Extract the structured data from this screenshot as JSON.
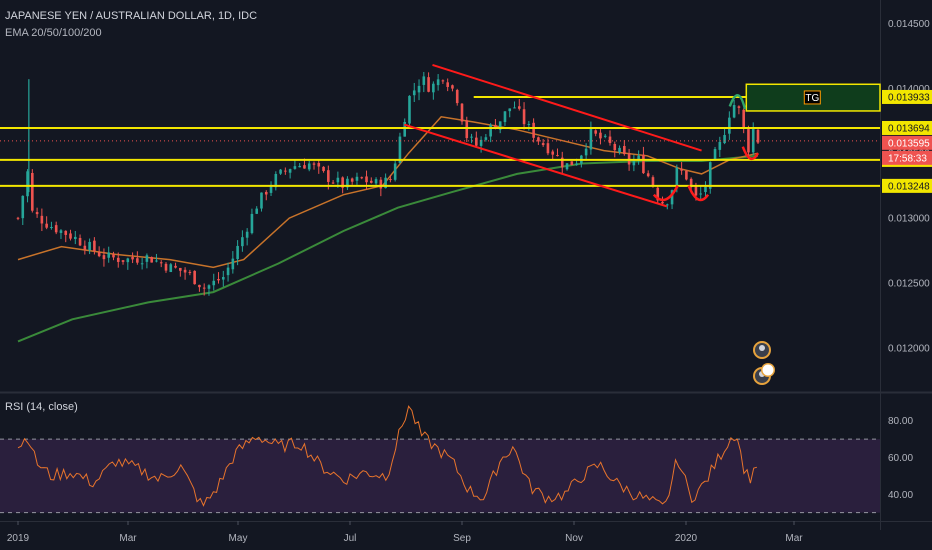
{
  "header": {
    "symbol": "JAPANESE YEN / AUSTRALIAN DOLLAR, 1D, IDC",
    "indicator": "EMA 20/50/100/200"
  },
  "rsi_label": "RSI (14, close)",
  "colors": {
    "background": "#131722",
    "up": "#26a69a",
    "down": "#ef5350",
    "level": "#f2e600",
    "channel": "#ff1a1a",
    "ema_fast": "#c8732a",
    "ema_slow": "#3a8a3a",
    "rsi": "#e8742c",
    "rsi_band": "#2a1f3d",
    "target_box": "#0f3d1c"
  },
  "chart_data": [
    {
      "type": "candlestick",
      "title": "JAPANESE YEN / AUSTRALIAN DOLLAR, 1D, IDC",
      "x_ticks": [
        "2019",
        "Mar",
        "May",
        "Jul",
        "Sep",
        "Nov",
        "2020",
        "Mar"
      ],
      "y_ticks": [
        "0.014500",
        "0.014000",
        "0.013500",
        "0.013000",
        "0.012500",
        "0.012000"
      ],
      "y_tick_values": [
        0.0145,
        0.014,
        0.0135,
        0.013,
        0.0125,
        0.012
      ],
      "ylim": [
        0.01166,
        0.01468
      ],
      "price_levels": [
        {
          "label": "0.013933",
          "value": 0.013933
        },
        {
          "label": "0.013694",
          "value": 0.013694
        },
        {
          "label": "0.013448",
          "value": 0.013448
        },
        {
          "label": "0.013248",
          "value": 0.013248
        }
      ],
      "current_price": {
        "label": "0.013595",
        "value": 0.013595
      },
      "countdown": "17:58:33",
      "target_label": "TG",
      "path_points": [
        {
          "t": 0,
          "p": 0.013
        },
        {
          "t": 5,
          "p": 0.0134
        },
        {
          "t": 6,
          "p": 0.01305
        },
        {
          "t": 14,
          "p": 0.01295
        },
        {
          "t": 26,
          "p": 0.01285
        },
        {
          "t": 40,
          "p": 0.0127
        },
        {
          "t": 50,
          "p": 0.01268
        },
        {
          "t": 60,
          "p": 0.0127
        },
        {
          "t": 70,
          "p": 0.01262
        },
        {
          "t": 78,
          "p": 0.01258
        },
        {
          "t": 86,
          "p": 0.01246
        },
        {
          "t": 95,
          "p": 0.01255
        },
        {
          "t": 102,
          "p": 0.0128
        },
        {
          "t": 110,
          "p": 0.0131
        },
        {
          "t": 118,
          "p": 0.0133
        },
        {
          "t": 126,
          "p": 0.0134
        },
        {
          "t": 134,
          "p": 0.01342
        },
        {
          "t": 142,
          "p": 0.01332
        },
        {
          "t": 150,
          "p": 0.01325
        },
        {
          "t": 158,
          "p": 0.0133
        },
        {
          "t": 166,
          "p": 0.01326
        },
        {
          "t": 172,
          "p": 0.0133
        },
        {
          "t": 176,
          "p": 0.01362
        },
        {
          "t": 180,
          "p": 0.01392
        },
        {
          "t": 186,
          "p": 0.01408
        },
        {
          "t": 190,
          "p": 0.014
        },
        {
          "t": 196,
          "p": 0.0141
        },
        {
          "t": 202,
          "p": 0.01395
        },
        {
          "t": 207,
          "p": 0.01362
        },
        {
          "t": 212,
          "p": 0.01355
        },
        {
          "t": 216,
          "p": 0.01367
        },
        {
          "t": 222,
          "p": 0.01375
        },
        {
          "t": 228,
          "p": 0.01388
        },
        {
          "t": 234,
          "p": 0.01372
        },
        {
          "t": 240,
          "p": 0.0136
        },
        {
          "t": 246,
          "p": 0.01352
        },
        {
          "t": 252,
          "p": 0.0134
        },
        {
          "t": 258,
          "p": 0.01345
        },
        {
          "t": 264,
          "p": 0.01365
        },
        {
          "t": 270,
          "p": 0.0136
        },
        {
          "t": 276,
          "p": 0.01352
        },
        {
          "t": 282,
          "p": 0.01342
        },
        {
          "t": 286,
          "p": 0.01345
        },
        {
          "t": 292,
          "p": 0.01328
        },
        {
          "t": 296,
          "p": 0.01312
        },
        {
          "t": 300,
          "p": 0.01315
        },
        {
          "t": 304,
          "p": 0.01338
        },
        {
          "t": 308,
          "p": 0.01332
        },
        {
          "t": 312,
          "p": 0.01315
        },
        {
          "t": 316,
          "p": 0.0132
        },
        {
          "t": 320,
          "p": 0.01345
        },
        {
          "t": 324,
          "p": 0.01358
        },
        {
          "t": 328,
          "p": 0.01382
        },
        {
          "t": 331,
          "p": 0.0139
        },
        {
          "t": 334,
          "p": 0.01372
        },
        {
          "t": 336,
          "p": 0.0135
        },
        {
          "t": 339,
          "p": 0.0137
        },
        {
          "t": 341,
          "p": 0.0136
        }
      ],
      "ema_fast": [
        {
          "t": 0,
          "p": 0.01268
        },
        {
          "t": 20,
          "p": 0.01278
        },
        {
          "t": 45,
          "p": 0.01272
        },
        {
          "t": 70,
          "p": 0.01268
        },
        {
          "t": 90,
          "p": 0.01262
        },
        {
          "t": 104,
          "p": 0.01268
        },
        {
          "t": 125,
          "p": 0.013
        },
        {
          "t": 150,
          "p": 0.01318
        },
        {
          "t": 168,
          "p": 0.01325
        },
        {
          "t": 180,
          "p": 0.0135
        },
        {
          "t": 195,
          "p": 0.01378
        },
        {
          "t": 210,
          "p": 0.01374
        },
        {
          "t": 230,
          "p": 0.01368
        },
        {
          "t": 250,
          "p": 0.0136
        },
        {
          "t": 270,
          "p": 0.01352
        },
        {
          "t": 290,
          "p": 0.01348
        },
        {
          "t": 305,
          "p": 0.01338
        },
        {
          "t": 315,
          "p": 0.01334
        },
        {
          "t": 328,
          "p": 0.01345
        },
        {
          "t": 341,
          "p": 0.0135
        }
      ],
      "ema_slow": [
        {
          "t": 0,
          "p": 0.01205
        },
        {
          "t": 25,
          "p": 0.01222
        },
        {
          "t": 60,
          "p": 0.01235
        },
        {
          "t": 90,
          "p": 0.01243
        },
        {
          "t": 120,
          "p": 0.01265
        },
        {
          "t": 150,
          "p": 0.0129
        },
        {
          "t": 175,
          "p": 0.01308
        },
        {
          "t": 200,
          "p": 0.0132
        },
        {
          "t": 230,
          "p": 0.01334
        },
        {
          "t": 260,
          "p": 0.01342
        },
        {
          "t": 290,
          "p": 0.01344
        },
        {
          "t": 315,
          "p": 0.01344
        },
        {
          "t": 341,
          "p": 0.01348
        }
      ]
    },
    {
      "type": "line",
      "title": "RSI (14, close)",
      "y_ticks": [
        "80.00",
        "60.00",
        "40.00"
      ],
      "y_tick_values": [
        80,
        60,
        40
      ],
      "ylim": [
        26,
        94
      ],
      "band": [
        30,
        70
      ],
      "rsi_points": [
        {
          "t": 0,
          "v": 66
        },
        {
          "t": 5,
          "v": 72
        },
        {
          "t": 8,
          "v": 58
        },
        {
          "t": 15,
          "v": 50
        },
        {
          "t": 25,
          "v": 52
        },
        {
          "t": 35,
          "v": 46
        },
        {
          "t": 45,
          "v": 58
        },
        {
          "t": 55,
          "v": 54
        },
        {
          "t": 65,
          "v": 48
        },
        {
          "t": 75,
          "v": 55
        },
        {
          "t": 85,
          "v": 33
        },
        {
          "t": 92,
          "v": 44
        },
        {
          "t": 100,
          "v": 62
        },
        {
          "t": 110,
          "v": 72
        },
        {
          "t": 120,
          "v": 66
        },
        {
          "t": 130,
          "v": 68
        },
        {
          "t": 140,
          "v": 55
        },
        {
          "t": 150,
          "v": 48
        },
        {
          "t": 160,
          "v": 52
        },
        {
          "t": 170,
          "v": 50
        },
        {
          "t": 176,
          "v": 74
        },
        {
          "t": 180,
          "v": 88
        },
        {
          "t": 186,
          "v": 72
        },
        {
          "t": 192,
          "v": 66
        },
        {
          "t": 200,
          "v": 58
        },
        {
          "t": 208,
          "v": 42
        },
        {
          "t": 215,
          "v": 38
        },
        {
          "t": 222,
          "v": 58
        },
        {
          "t": 228,
          "v": 66
        },
        {
          "t": 236,
          "v": 44
        },
        {
          "t": 244,
          "v": 38
        },
        {
          "t": 252,
          "v": 40
        },
        {
          "t": 260,
          "v": 50
        },
        {
          "t": 268,
          "v": 56
        },
        {
          "t": 276,
          "v": 46
        },
        {
          "t": 284,
          "v": 40
        },
        {
          "t": 292,
          "v": 36
        },
        {
          "t": 298,
          "v": 32
        },
        {
          "t": 304,
          "v": 60
        },
        {
          "t": 310,
          "v": 38
        },
        {
          "t": 316,
          "v": 45
        },
        {
          "t": 322,
          "v": 58
        },
        {
          "t": 328,
          "v": 70
        },
        {
          "t": 331,
          "v": 74
        },
        {
          "t": 334,
          "v": 56
        },
        {
          "t": 337,
          "v": 48
        },
        {
          "t": 341,
          "v": 58
        }
      ]
    }
  ]
}
